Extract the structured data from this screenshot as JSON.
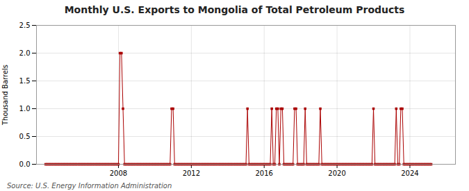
{
  "chart_data": {
    "type": "line",
    "title": "Monthly U.S. Exports to Mongolia of Total Petroleum Products",
    "ylabel": "Thousand Barrels",
    "caption": "Source: U.S. Energy Information Administration",
    "color": "#aa0000",
    "marker": "square",
    "line_style": "solid",
    "grid": true,
    "xlim": [
      2003.5,
      2026.5
    ],
    "xticks": [
      2008,
      2012,
      2016,
      2020,
      2024
    ],
    "ylim": [
      0.0,
      2.5
    ],
    "yticks": [
      {
        "value": 0.0,
        "label": "0.0"
      },
      0.5,
      {
        "value": 1.0,
        "label": "1.0"
      },
      1.5,
      {
        "value": 2.0,
        "label": "2.0"
      },
      2.5
    ],
    "x": [
      2004.0,
      2004.083,
      2004.167,
      2004.25,
      2004.333,
      2004.417,
      2004.5,
      2004.583,
      2004.667,
      2004.75,
      2004.833,
      2004.917,
      2005.0,
      2005.083,
      2005.167,
      2005.25,
      2005.333,
      2005.417,
      2005.5,
      2005.583,
      2005.667,
      2005.75,
      2005.833,
      2005.917,
      2006.0,
      2006.083,
      2006.167,
      2006.25,
      2006.333,
      2006.417,
      2006.5,
      2006.583,
      2006.667,
      2006.75,
      2006.833,
      2006.917,
      2007.0,
      2007.083,
      2007.167,
      2007.25,
      2007.333,
      2007.417,
      2007.5,
      2007.583,
      2007.667,
      2007.75,
      2007.833,
      2007.917,
      2008.0,
      2008.083,
      2008.167,
      2008.25,
      2008.333,
      2008.417,
      2008.5,
      2008.583,
      2008.667,
      2008.75,
      2008.833,
      2008.917,
      2009.0,
      2009.083,
      2009.167,
      2009.25,
      2009.333,
      2009.417,
      2009.5,
      2009.583,
      2009.667,
      2009.75,
      2009.833,
      2009.917,
      2010.0,
      2010.083,
      2010.167,
      2010.25,
      2010.333,
      2010.417,
      2010.5,
      2010.583,
      2010.667,
      2010.75,
      2010.833,
      2010.917,
      2011.0,
      2011.083,
      2011.167,
      2011.25,
      2011.333,
      2011.417,
      2011.5,
      2011.583,
      2011.667,
      2011.75,
      2011.833,
      2011.917,
      2012.0,
      2012.083,
      2012.167,
      2012.25,
      2012.333,
      2012.417,
      2012.5,
      2012.583,
      2012.667,
      2012.75,
      2012.833,
      2012.917,
      2013.0,
      2013.083,
      2013.167,
      2013.25,
      2013.333,
      2013.417,
      2013.5,
      2013.583,
      2013.667,
      2013.75,
      2013.833,
      2013.917,
      2014.0,
      2014.083,
      2014.167,
      2014.25,
      2014.333,
      2014.417,
      2014.5,
      2014.583,
      2014.667,
      2014.75,
      2014.833,
      2014.917,
      2015.0,
      2015.083,
      2015.167,
      2015.25,
      2015.333,
      2015.417,
      2015.5,
      2015.583,
      2015.667,
      2015.75,
      2015.833,
      2015.917,
      2016.0,
      2016.083,
      2016.167,
      2016.25,
      2016.333,
      2016.417,
      2016.5,
      2016.583,
      2016.667,
      2016.75,
      2016.833,
      2016.917,
      2017.0,
      2017.083,
      2017.167,
      2017.25,
      2017.333,
      2017.417,
      2017.5,
      2017.583,
      2017.667,
      2017.75,
      2017.833,
      2017.917,
      2018.0,
      2018.083,
      2018.167,
      2018.25,
      2018.333,
      2018.417,
      2018.5,
      2018.583,
      2018.667,
      2018.75,
      2018.833,
      2018.917,
      2019.0,
      2019.083,
      2019.167,
      2019.25,
      2019.333,
      2019.417,
      2019.5,
      2019.583,
      2019.667,
      2019.75,
      2019.833,
      2019.917,
      2020.0,
      2020.083,
      2020.167,
      2020.25,
      2020.333,
      2020.417,
      2020.5,
      2020.583,
      2020.667,
      2020.75,
      2020.833,
      2020.917,
      2021.0,
      2021.083,
      2021.167,
      2021.25,
      2021.333,
      2021.417,
      2021.5,
      2021.583,
      2021.667,
      2021.75,
      2021.833,
      2021.917,
      2022.0,
      2022.083,
      2022.167,
      2022.25,
      2022.333,
      2022.417,
      2022.5,
      2022.583,
      2022.667,
      2022.75,
      2022.833,
      2022.917,
      2023.0,
      2023.083,
      2023.167,
      2023.25,
      2023.333,
      2023.417,
      2023.5,
      2023.583,
      2023.667,
      2023.75,
      2023.833,
      2023.917,
      2024.0,
      2024.083,
      2024.167,
      2024.25,
      2024.333,
      2024.417,
      2024.5,
      2024.583,
      2024.667,
      2024.75,
      2024.833,
      2024.917,
      2025.0,
      2025.083,
      2025.167
    ],
    "values": [
      0,
      0,
      0,
      0,
      0,
      0,
      0,
      0,
      0,
      0,
      0,
      0,
      0,
      0,
      0,
      0,
      0,
      0,
      0,
      0,
      0,
      0,
      0,
      0,
      0,
      0,
      0,
      0,
      0,
      0,
      0,
      0,
      0,
      0,
      0,
      0,
      0,
      0,
      0,
      0,
      0,
      0,
      0,
      0,
      0,
      0,
      0,
      0,
      0,
      2.0,
      2.0,
      1.0,
      0,
      0,
      0,
      0,
      0,
      0,
      0,
      0,
      0,
      0,
      0,
      0,
      0,
      0,
      0,
      0,
      0,
      0,
      0,
      0,
      0,
      0,
      0,
      0,
      0,
      0,
      0,
      0,
      0,
      0,
      0,
      1.0,
      1.0,
      0,
      0,
      0,
      0,
      0,
      0,
      0,
      0,
      0,
      0,
      0,
      0,
      0,
      0,
      0,
      0,
      0,
      0,
      0,
      0,
      0,
      0,
      0,
      0,
      0,
      0,
      0,
      0,
      0,
      0,
      0,
      0,
      0,
      0,
      0,
      0,
      0,
      0,
      0,
      0,
      0,
      0,
      0,
      0,
      0,
      0,
      0,
      0,
      1.0,
      0,
      0,
      0,
      0,
      0,
      0,
      0,
      0,
      0,
      0,
      0,
      0,
      0,
      0,
      0,
      1.0,
      0,
      0,
      1.0,
      1.0,
      0,
      1.0,
      1.0,
      0,
      0,
      0,
      0,
      0,
      0,
      0,
      1.0,
      1.0,
      0,
      0,
      0,
      0,
      0,
      1.0,
      0,
      0,
      0,
      0,
      0,
      0,
      0,
      0,
      0,
      1.0,
      0,
      0,
      0,
      0,
      0,
      0,
      0,
      0,
      0,
      0,
      0,
      0,
      0,
      0,
      0,
      0,
      0,
      0,
      0,
      0,
      0,
      0,
      0,
      0,
      0,
      0,
      0,
      0,
      0,
      0,
      0,
      0,
      0,
      0,
      1.0,
      0,
      0,
      0,
      0,
      0,
      0,
      0,
      0,
      0,
      0,
      0,
      0,
      0,
      0,
      1.0,
      0,
      0,
      1.0,
      1.0,
      0,
      0,
      0,
      0,
      0,
      0,
      0,
      0,
      0,
      0,
      0,
      0,
      0,
      0,
      0,
      0,
      0,
      0,
      0
    ]
  }
}
